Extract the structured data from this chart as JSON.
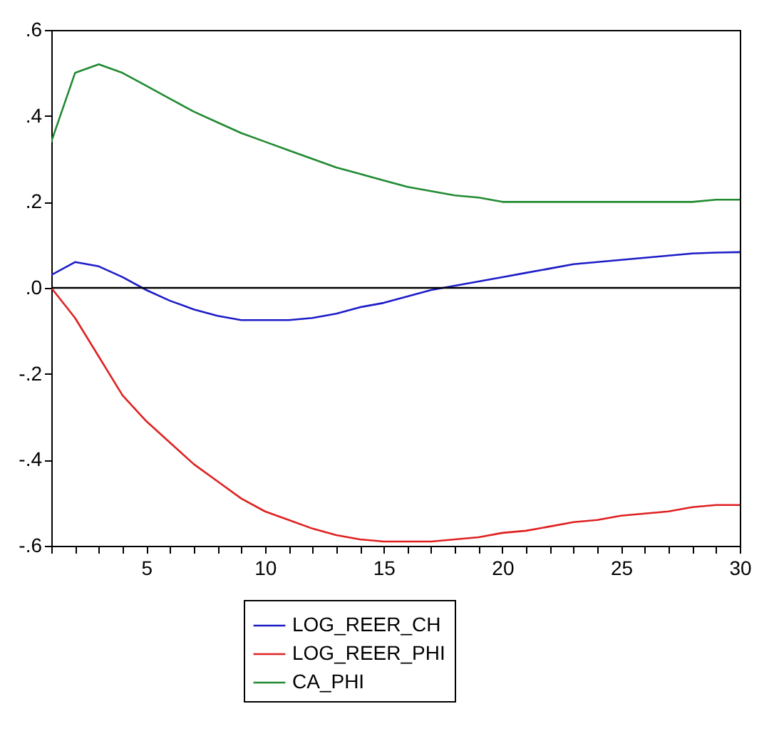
{
  "chart_data": {
    "type": "line",
    "x": [
      1,
      2,
      3,
      4,
      5,
      6,
      7,
      8,
      9,
      10,
      11,
      12,
      13,
      14,
      15,
      16,
      17,
      18,
      19,
      20,
      21,
      22,
      23,
      24,
      25,
      26,
      27,
      28,
      29,
      30
    ],
    "series": [
      {
        "name": "LOG_REER_CH",
        "color": "#1c1cc8",
        "values": [
          0.03,
          0.06,
          0.05,
          0.025,
          -0.005,
          -0.03,
          -0.05,
          -0.065,
          -0.075,
          -0.075,
          -0.075,
          -0.07,
          -0.06,
          -0.045,
          -0.035,
          -0.02,
          -0.005,
          0.005,
          0.015,
          0.025,
          0.035,
          0.045,
          0.055,
          0.06,
          0.065,
          0.07,
          0.075,
          0.08,
          0.082,
          0.083
        ]
      },
      {
        "name": "LOG_REER_PHI",
        "color": "#e02020",
        "values": [
          0.0,
          -0.07,
          -0.16,
          -0.25,
          -0.31,
          -0.36,
          -0.41,
          -0.45,
          -0.49,
          -0.52,
          -0.54,
          -0.56,
          -0.575,
          -0.585,
          -0.59,
          -0.59,
          -0.59,
          -0.585,
          -0.58,
          -0.57,
          -0.565,
          -0.555,
          -0.545,
          -0.54,
          -0.53,
          -0.525,
          -0.52,
          -0.51,
          -0.505,
          -0.505
        ]
      },
      {
        "name": "CA_PHI",
        "color": "#208a30",
        "values": [
          0.34,
          0.5,
          0.52,
          0.5,
          0.47,
          0.44,
          0.41,
          0.385,
          0.36,
          0.34,
          0.32,
          0.3,
          0.28,
          0.265,
          0.25,
          0.235,
          0.225,
          0.215,
          0.21,
          0.2,
          0.2,
          0.2,
          0.2,
          0.2,
          0.2,
          0.2,
          0.2,
          0.2,
          0.205,
          0.205
        ]
      }
    ],
    "xlim": [
      1,
      30
    ],
    "xticks": [
      {
        "value": 1,
        "label": null
      },
      {
        "value": 2,
        "label": null
      },
      {
        "value": 3,
        "label": null
      },
      {
        "value": 4,
        "label": null
      },
      5,
      {
        "value": 6,
        "label": null
      },
      {
        "value": 7,
        "label": null
      },
      {
        "value": 8,
        "label": null
      },
      {
        "value": 9,
        "label": null
      },
      10,
      {
        "value": 11,
        "label": null
      },
      {
        "value": 12,
        "label": null
      },
      {
        "value": 13,
        "label": null
      },
      {
        "value": 14,
        "label": null
      },
      15,
      {
        "value": 16,
        "label": null
      },
      {
        "value": 17,
        "label": null
      },
      {
        "value": 18,
        "label": null
      },
      {
        "value": 19,
        "label": null
      },
      20,
      {
        "value": 21,
        "label": null
      },
      {
        "value": 22,
        "label": null
      },
      {
        "value": 23,
        "label": null
      },
      {
        "value": 24,
        "label": null
      },
      25,
      {
        "value": 26,
        "label": null
      },
      {
        "value": 27,
        "label": null
      },
      {
        "value": 28,
        "label": null
      },
      {
        "value": 29,
        "label": null
      },
      30
    ],
    "ylim": [
      -0.6,
      0.6
    ],
    "yticks": [
      {
        "value": -0.6,
        "label": "-.6"
      },
      {
        "value": -0.4,
        "label": "-.4"
      },
      {
        "value": -0.2,
        "label": "-.2"
      },
      {
        "value": 0,
        "label": ".0"
      },
      {
        "value": 0.2,
        "label": ".2"
      },
      {
        "value": 0.4,
        "label": ".4"
      },
      {
        "value": 0.6,
        "label": ".6"
      }
    ],
    "ref_lines": [
      {
        "axis": "y",
        "value": 0,
        "color": "#000000"
      }
    ],
    "legend": "bottom",
    "grid": false,
    "marker": "none",
    "line_style": "solid"
  }
}
